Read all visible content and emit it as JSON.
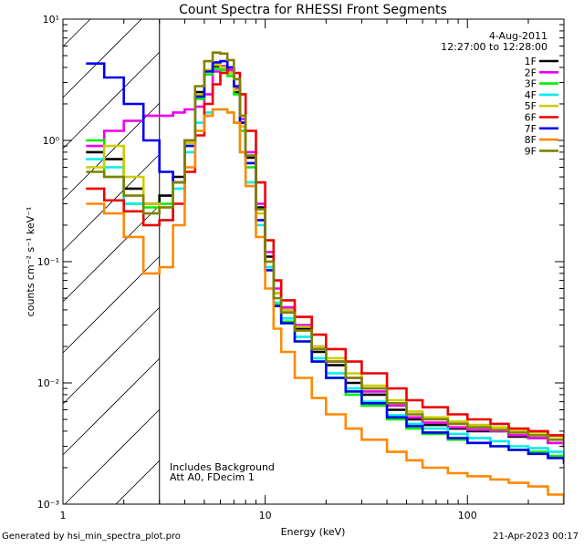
{
  "chart_data": {
    "type": "line",
    "title": "Count Spectra for RHESSI Front Segments",
    "xlabel": "Energy (keV)",
    "ylabel": "counts cm⁻² s⁻¹ keV⁻¹",
    "xscale": "log",
    "yscale": "log",
    "xlim": [
      1,
      300
    ],
    "ylim": [
      0.001,
      10
    ],
    "x_tick_labels": [
      "1",
      "10",
      "100"
    ],
    "y_tick_labels": [
      "10⁻³",
      "10⁻²",
      "10⁻¹",
      "10⁰",
      "10¹"
    ],
    "date": "4-Aug-2011",
    "time_range": "12:27:00 to 12:28:00",
    "annotations": [
      "Includes Background",
      "Att A0, FDecim 1"
    ],
    "excluded_region": {
      "from_keV": 1,
      "to_keV": 3,
      "style": "hatched"
    },
    "series": [
      {
        "name": "1F",
        "color": "#000000",
        "x": [
          1.3,
          1.6,
          2.0,
          2.5,
          3.0,
          3.5,
          4.0,
          4.5,
          5.0,
          5.5,
          6.0,
          6.5,
          7.0,
          7.5,
          8.0,
          9.0,
          10.0,
          11.0,
          12.0,
          14.0,
          17.0,
          20.0,
          25.0,
          30.0,
          40.0,
          50.0,
          60.0,
          80.0,
          100.0,
          130.0,
          160.0,
          200.0,
          250.0,
          300.0
        ],
        "y": [
          0.8,
          0.7,
          0.4,
          0.3,
          0.35,
          0.5,
          1.0,
          2.5,
          3.8,
          4.1,
          4.0,
          3.6,
          2.5,
          1.4,
          0.72,
          0.28,
          0.11,
          0.055,
          0.04,
          0.028,
          0.018,
          0.014,
          0.01,
          0.008,
          0.006,
          0.005,
          0.0045,
          0.0042,
          0.004,
          0.004,
          0.0036,
          0.0035,
          0.0032,
          0.003
        ]
      },
      {
        "name": "2F",
        "color": "#ee00ee",
        "x": [
          1.3,
          1.6,
          2.0,
          2.5,
          3.0,
          3.5,
          4.0,
          4.5,
          5.0,
          5.5,
          6.0,
          6.5,
          7.0,
          7.5,
          8.0,
          9.0,
          10.0,
          11.0,
          12.0,
          14.0,
          17.0,
          20.0,
          25.0,
          30.0,
          40.0,
          50.0,
          60.0,
          80.0,
          100.0,
          130.0,
          160.0,
          200.0,
          250.0,
          300.0
        ],
        "y": [
          0.9,
          1.2,
          1.45,
          1.6,
          1.6,
          1.7,
          1.8,
          1.9,
          2.4,
          3.7,
          4.1,
          3.8,
          2.7,
          1.5,
          0.8,
          0.3,
          0.12,
          0.06,
          0.042,
          0.03,
          0.02,
          0.015,
          0.011,
          0.0085,
          0.0065,
          0.0052,
          0.0047,
          0.0043,
          0.0041,
          0.004,
          0.0037,
          0.0035,
          0.0032,
          0.003
        ]
      },
      {
        "name": "3F",
        "color": "#00ee00",
        "x": [
          1.3,
          1.6,
          2.0,
          2.5,
          3.0,
          3.5,
          4.0,
          4.5,
          5.0,
          5.5,
          6.0,
          6.5,
          7.0,
          7.5,
          8.0,
          9.0,
          10.0,
          11.0,
          12.0,
          14.0,
          17.0,
          20.0,
          25.0,
          30.0,
          40.0,
          50.0,
          60.0,
          80.0,
          100.0,
          130.0,
          160.0,
          200.0,
          250.0,
          300.0
        ],
        "y": [
          1.0,
          0.5,
          0.3,
          0.28,
          0.3,
          0.45,
          0.9,
          2.2,
          3.5,
          3.9,
          3.8,
          3.4,
          2.4,
          1.2,
          0.6,
          0.22,
          0.09,
          0.045,
          0.032,
          0.022,
          0.015,
          0.011,
          0.008,
          0.0065,
          0.005,
          0.0042,
          0.0038,
          0.0034,
          0.0032,
          0.003,
          0.0028,
          0.0027,
          0.0025,
          0.0024
        ]
      },
      {
        "name": "4F",
        "color": "#00eeee",
        "x": [
          1.3,
          1.6,
          2.0,
          2.5,
          3.0,
          3.5,
          4.0,
          4.5,
          5.0,
          5.5,
          6.0,
          6.5,
          7.0,
          7.5,
          8.0,
          9.0,
          10.0,
          11.0,
          12.0,
          14.0,
          17.0,
          20.0,
          25.0,
          30.0,
          40.0,
          50.0,
          60.0,
          80.0,
          100.0,
          130.0,
          160.0,
          200.0,
          250.0,
          300.0
        ],
        "y": [
          0.7,
          0.6,
          0.3,
          0.2,
          0.22,
          0.4,
          0.8,
          1.4,
          1.7,
          1.8,
          1.8,
          1.7,
          1.4,
          0.8,
          0.45,
          0.2,
          0.09,
          0.046,
          0.034,
          0.024,
          0.016,
          0.012,
          0.009,
          0.007,
          0.0054,
          0.0046,
          0.0042,
          0.0038,
          0.0035,
          0.0033,
          0.003,
          0.0029,
          0.0027,
          0.0025
        ]
      },
      {
        "name": "5F",
        "color": "#cccc00",
        "x": [
          1.3,
          1.6,
          2.0,
          2.5,
          3.0,
          3.5,
          4.0,
          4.5,
          5.0,
          5.5,
          6.0,
          6.5,
          7.0,
          7.5,
          8.0,
          9.0,
          10.0,
          11.0,
          12.0,
          14.0,
          17.0,
          20.0,
          25.0,
          30.0,
          40.0,
          50.0,
          60.0,
          80.0,
          100.0,
          130.0,
          160.0,
          200.0,
          250.0,
          300.0
        ],
        "y": [
          0.6,
          0.9,
          0.5,
          0.3,
          0.28,
          0.45,
          0.95,
          2.4,
          3.8,
          4.2,
          4.0,
          3.6,
          2.6,
          1.3,
          0.65,
          0.25,
          0.1,
          0.055,
          0.04,
          0.029,
          0.02,
          0.016,
          0.012,
          0.0095,
          0.0072,
          0.0058,
          0.0052,
          0.0048,
          0.0045,
          0.0043,
          0.0041,
          0.0039,
          0.0036,
          0.0033
        ]
      },
      {
        "name": "6F",
        "color": "#ee0000",
        "x": [
          1.3,
          1.6,
          2.0,
          2.5,
          3.0,
          3.5,
          4.0,
          4.5,
          5.0,
          5.5,
          6.0,
          6.5,
          7.0,
          7.5,
          8.0,
          9.0,
          10.0,
          11.0,
          12.0,
          14.0,
          17.0,
          20.0,
          25.0,
          30.0,
          40.0,
          50.0,
          60.0,
          80.0,
          100.0,
          130.0,
          160.0,
          200.0,
          250.0,
          300.0
        ],
        "y": [
          0.4,
          0.32,
          0.26,
          0.2,
          0.22,
          0.3,
          0.55,
          1.1,
          2.0,
          2.9,
          3.6,
          4.0,
          3.6,
          2.4,
          1.2,
          0.45,
          0.15,
          0.07,
          0.048,
          0.035,
          0.025,
          0.019,
          0.015,
          0.012,
          0.009,
          0.0072,
          0.0063,
          0.0055,
          0.005,
          0.0046,
          0.0042,
          0.004,
          0.0037,
          0.0034
        ]
      },
      {
        "name": "7F",
        "color": "#0000ee",
        "x": [
          1.3,
          1.6,
          2.0,
          2.5,
          3.0,
          3.5,
          4.0,
          4.5,
          5.0,
          5.5,
          6.0,
          6.5,
          7.0,
          7.5,
          8.0,
          9.0,
          10.0,
          11.0,
          12.0,
          14.0,
          17.0,
          20.0,
          25.0,
          30.0,
          40.0,
          50.0,
          60.0,
          80.0,
          100.0,
          130.0,
          160.0,
          200.0,
          250.0,
          300.0
        ],
        "y": [
          4.3,
          3.3,
          2.0,
          1.0,
          0.55,
          0.45,
          0.9,
          2.3,
          3.7,
          4.4,
          4.5,
          4.0,
          2.8,
          1.4,
          0.65,
          0.22,
          0.085,
          0.043,
          0.031,
          0.022,
          0.015,
          0.011,
          0.0085,
          0.0068,
          0.0052,
          0.0044,
          0.0039,
          0.0035,
          0.0032,
          0.003,
          0.0028,
          0.0026,
          0.0024,
          0.0022
        ]
      },
      {
        "name": "8F",
        "color": "#ff8800",
        "x": [
          1.3,
          1.6,
          2.0,
          2.5,
          3.0,
          3.5,
          4.0,
          4.5,
          5.0,
          5.5,
          6.0,
          6.5,
          7.0,
          7.5,
          8.0,
          9.0,
          10.0,
          11.0,
          12.0,
          14.0,
          17.0,
          20.0,
          25.0,
          30.0,
          40.0,
          50.0,
          60.0,
          80.0,
          100.0,
          130.0,
          160.0,
          200.0,
          250.0,
          300.0
        ],
        "y": [
          0.3,
          0.25,
          0.16,
          0.08,
          0.09,
          0.2,
          0.6,
          1.2,
          1.6,
          1.8,
          1.8,
          1.7,
          1.4,
          0.8,
          0.42,
          0.16,
          0.06,
          0.028,
          0.018,
          0.011,
          0.0075,
          0.0055,
          0.0042,
          0.0034,
          0.0027,
          0.0023,
          0.002,
          0.0018,
          0.0017,
          0.0016,
          0.0015,
          0.0014,
          0.0012,
          0.001
        ]
      },
      {
        "name": "9F",
        "color": "#808000",
        "x": [
          1.3,
          1.6,
          2.0,
          2.5,
          3.0,
          3.5,
          4.0,
          4.5,
          5.0,
          5.5,
          6.0,
          6.5,
          7.0,
          7.5,
          8.0,
          9.0,
          10.0,
          11.0,
          12.0,
          14.0,
          17.0,
          20.0,
          25.0,
          30.0,
          40.0,
          50.0,
          60.0,
          80.0,
          100.0,
          130.0,
          160.0,
          200.0,
          250.0,
          300.0
        ],
        "y": [
          0.55,
          0.5,
          0.35,
          0.25,
          0.28,
          0.45,
          1.0,
          2.8,
          4.5,
          5.3,
          5.2,
          4.6,
          3.2,
          1.6,
          0.75,
          0.27,
          0.1,
          0.05,
          0.038,
          0.027,
          0.019,
          0.015,
          0.011,
          0.009,
          0.0068,
          0.0055,
          0.005,
          0.0046,
          0.0043,
          0.0041,
          0.0039,
          0.0037,
          0.0034,
          0.0031
        ]
      }
    ]
  },
  "footer": {
    "generated_by": "Generated by hsi_min_spectra_plot.pro",
    "timestamp": "21-Apr-2023 00:17"
  }
}
